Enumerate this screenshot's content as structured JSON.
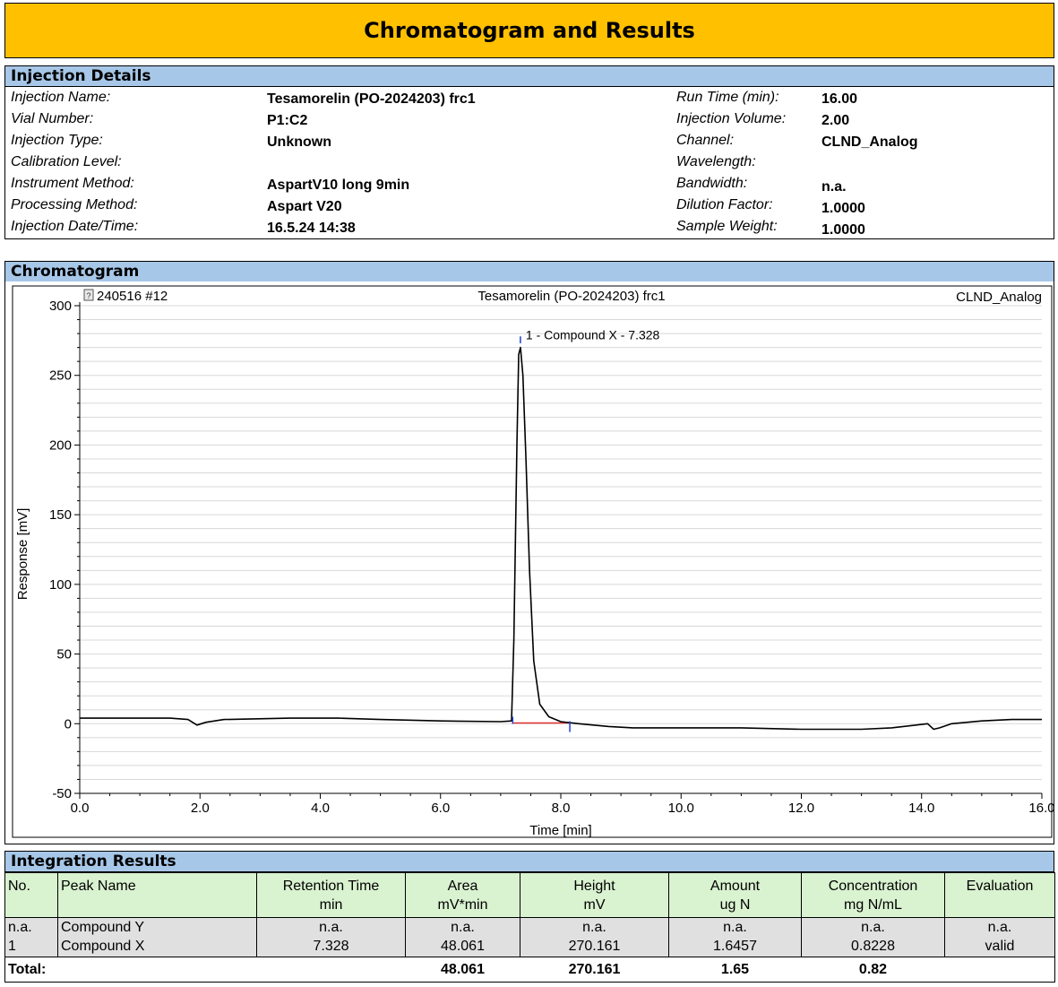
{
  "report_title": "Chromatogram and Results",
  "injection_details": {
    "heading": "Injection Details",
    "left": [
      {
        "label": "Injection Name:",
        "value": "Tesamorelin (PO-2024203) frc1"
      },
      {
        "label": "Vial Number:",
        "value": "P1:C2"
      },
      {
        "label": "Injection Type:",
        "value": "Unknown"
      },
      {
        "label": "Calibration Level:",
        "value": ""
      },
      {
        "label": "Instrument Method:",
        "value": "AspartV10 long 9min"
      },
      {
        "label": "Processing Method:",
        "value": "Aspart V20"
      },
      {
        "label": "Injection Date/Time:",
        "value": "16.5.24 14:38"
      }
    ],
    "right": [
      {
        "label": "Run Time (min):",
        "value": "16.00"
      },
      {
        "label": "Injection Volume:",
        "value": "2.00"
      },
      {
        "label": "Channel:",
        "value": "CLND_Analog"
      },
      {
        "label": "Wavelength:",
        "value": ""
      },
      {
        "label": "Bandwidth:",
        "value": "n.a."
      },
      {
        "label": "Dilution Factor:",
        "value": "1.0000"
      },
      {
        "label": "Sample Weight:",
        "value": "1.0000"
      }
    ]
  },
  "chromatogram": {
    "heading": "Chromatogram",
    "run_id": "240516 #12",
    "sample_name": "Tesamorelin (PO-2024203) frc1",
    "channel": "CLND_Analog",
    "peak_label": "1 - Compound X - 7.328"
  },
  "chart_data": {
    "type": "line",
    "title": "Tesamorelin (PO-2024203) frc1",
    "xlabel": "Time [min]",
    "ylabel": "Response [mV]",
    "xlim": [
      0,
      16
    ],
    "ylim": [
      -50,
      300
    ],
    "x_ticks": [
      "0.0",
      "2.0",
      "4.0",
      "6.0",
      "8.0",
      "10.0",
      "12.0",
      "14.0",
      "16.0"
    ],
    "y_ticks": [
      "-50",
      "0",
      "50",
      "100",
      "150",
      "200",
      "250",
      "300"
    ],
    "grid": true,
    "series": [
      {
        "x": [
          0,
          1.5,
          1.8,
          1.95,
          2.1,
          2.4,
          3.5,
          4.3,
          5.0,
          6.0,
          7.0,
          7.18,
          7.22,
          7.27,
          7.3,
          7.33,
          7.37,
          7.42,
          7.48,
          7.55,
          7.65,
          7.8,
          8.0,
          8.3,
          8.8,
          9.2,
          10.0,
          11.0,
          12.0,
          13.0,
          13.5,
          14.1,
          14.2,
          14.3,
          14.5,
          15.0,
          15.5,
          16.0
        ],
        "y": [
          4,
          4,
          3,
          -1,
          1,
          3,
          4,
          4,
          3,
          2,
          1.5,
          2,
          60,
          200,
          265,
          270,
          250,
          190,
          110,
          45,
          14,
          5,
          1.5,
          0,
          -2,
          -3,
          -3,
          -3,
          -4,
          -4,
          -3,
          0,
          -4,
          -3,
          0,
          2,
          3,
          3
        ]
      }
    ],
    "baseline": {
      "x": [
        7.2,
        8.15
      ],
      "y": [
        0.5,
        0.5
      ],
      "color": "#e03030"
    },
    "peak_markers": [
      7.2,
      7.328,
      8.15
    ],
    "colors": {
      "trace": "#000000",
      "baseline": "#e03030",
      "marker": "#1f3fd6"
    }
  },
  "integration_results": {
    "heading": "Integration Results",
    "columns": [
      {
        "name": "No.",
        "unit": ""
      },
      {
        "name": "Peak Name",
        "unit": ""
      },
      {
        "name": "Retention Time",
        "unit": "min"
      },
      {
        "name": "Area",
        "unit": "mV*min"
      },
      {
        "name": "Height",
        "unit": "mV"
      },
      {
        "name": "Amount",
        "unit": "ug N"
      },
      {
        "name": "Concentration",
        "unit": "mg N/mL"
      },
      {
        "name": "Evaluation",
        "unit": ""
      }
    ],
    "rows": [
      [
        "n.a.",
        "Compound Y",
        "n.a.",
        "n.a.",
        "n.a.",
        "n.a.",
        "n.a.",
        "n.a."
      ],
      [
        "1",
        "Compound X",
        "7.328",
        "48.061",
        "270.161",
        "1.6457",
        "0.8228",
        "valid"
      ]
    ],
    "total": {
      "label": "Total:",
      "values": [
        "",
        "",
        "48.061",
        "270.161",
        "1.65",
        "0.82",
        ""
      ]
    }
  },
  "colors": {
    "title_bg": "#ffc000",
    "section_bg": "#a7c7e8",
    "header_cell_bg": "#d9f2d0",
    "row_bg": "#e0e0e0"
  }
}
